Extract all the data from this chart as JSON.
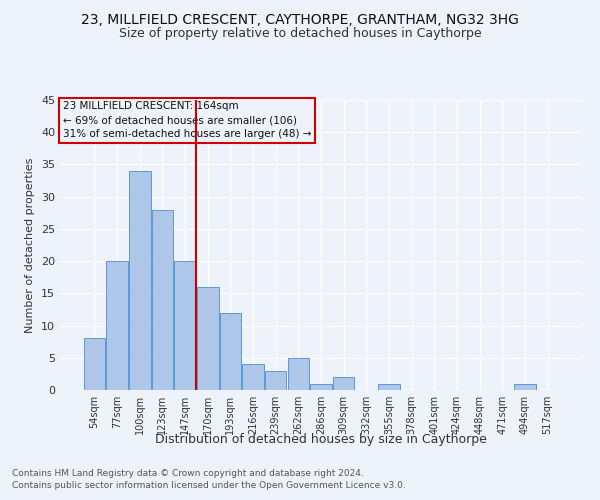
{
  "title": "23, MILLFIELD CRESCENT, CAYTHORPE, GRANTHAM, NG32 3HG",
  "subtitle": "Size of property relative to detached houses in Caythorpe",
  "xlabel": "Distribution of detached houses by size in Caythorpe",
  "ylabel": "Number of detached properties",
  "footnote1": "Contains HM Land Registry data © Crown copyright and database right 2024.",
  "footnote2": "Contains public sector information licensed under the Open Government Licence v3.0.",
  "annotation_line1": "23 MILLFIELD CRESCENT: 164sqm",
  "annotation_line2": "← 69% of detached houses are smaller (106)",
  "annotation_line3": "31% of semi-detached houses are larger (48) →",
  "bar_color": "#aec6e8",
  "bar_edge_color": "#5b9bd5",
  "vline_color": "#cc0000",
  "vline_x": 4.5,
  "annotation_box_color": "#cc0000",
  "categories": [
    "54sqm",
    "77sqm",
    "100sqm",
    "123sqm",
    "147sqm",
    "170sqm",
    "193sqm",
    "216sqm",
    "239sqm",
    "262sqm",
    "286sqm",
    "309sqm",
    "332sqm",
    "355sqm",
    "378sqm",
    "401sqm",
    "424sqm",
    "448sqm",
    "471sqm",
    "494sqm",
    "517sqm"
  ],
  "values": [
    8,
    20,
    34,
    28,
    20,
    16,
    12,
    4,
    3,
    5,
    1,
    2,
    0,
    1,
    0,
    0,
    0,
    0,
    0,
    1,
    0
  ],
  "ylim": [
    0,
    45
  ],
  "yticks": [
    0,
    5,
    10,
    15,
    20,
    25,
    30,
    35,
    40,
    45
  ],
  "bg_color": "#eef2fa",
  "grid_color": "#ffffff",
  "title_fontsize": 10,
  "subtitle_fontsize": 9,
  "annotation_fontsize": 7.5,
  "ylabel_fontsize": 8,
  "xlabel_fontsize": 9,
  "tick_fontsize": 7,
  "footnote_fontsize": 6.5
}
